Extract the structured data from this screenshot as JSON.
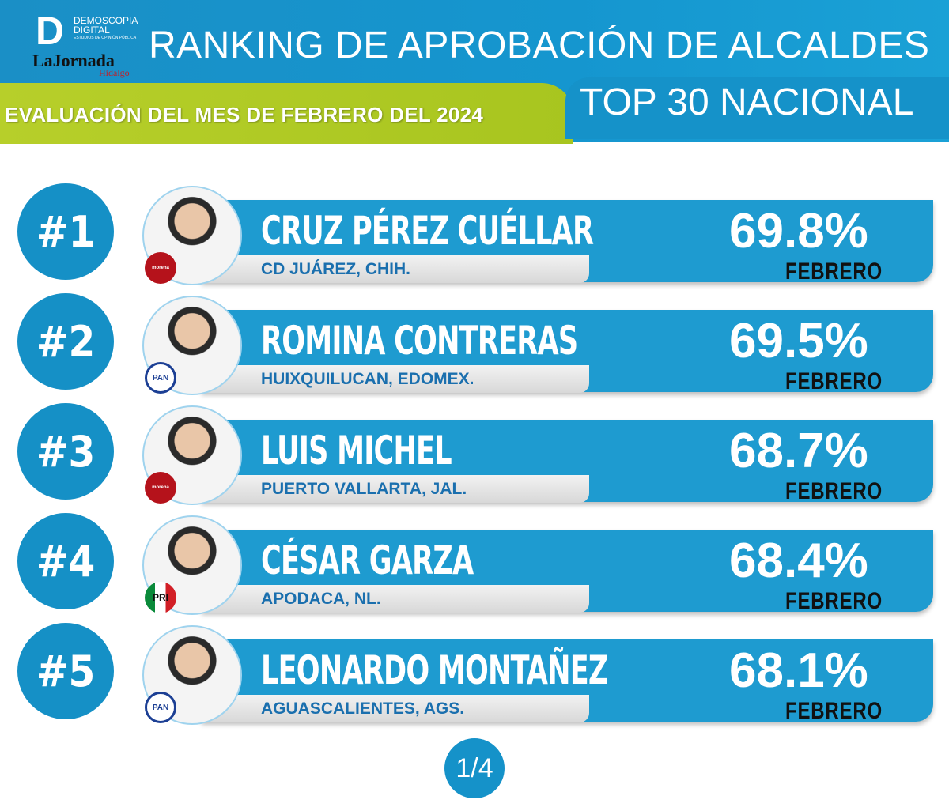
{
  "header": {
    "logo_text": "DEMOSCOPIA DIGITAL",
    "logo_tagline": "ESTUDIOS DE OPINIÓN PÚBLICA",
    "partner_logo": "LaJornada",
    "partner_sub": "Hidalgo",
    "title": "RANKING DE APROBACIÓN DE ALCALDES",
    "subtitle": "EVALUACIÓN DEL MES DE FEBRERO DEL 2024",
    "badge": "TOP 30 NACIONAL"
  },
  "colors": {
    "blue": "#1592c9",
    "green": "#b0c924",
    "bar": "#1e9bd0"
  },
  "ranking": [
    {
      "rank": "#1",
      "name": "CRUZ PÉREZ CUÉLLAR",
      "place": "CD JUÁREZ, CHIH.",
      "approval": "69.8%",
      "month": "FEBRERO",
      "party": "morena"
    },
    {
      "rank": "#2",
      "name": "ROMINA CONTRERAS",
      "place": "HUIXQUILUCAN, EDOMEX.",
      "approval": "69.5%",
      "month": "FEBRERO",
      "party": "PAN"
    },
    {
      "rank": "#3",
      "name": "LUIS MICHEL",
      "place": "PUERTO VALLARTA, JAL.",
      "approval": "68.7%",
      "month": "FEBRERO",
      "party": "morena"
    },
    {
      "rank": "#4",
      "name": "CÉSAR GARZA",
      "place": "APODACA, NL.",
      "approval": "68.4%",
      "month": "FEBRERO",
      "party": "PRI"
    },
    {
      "rank": "#5",
      "name": "LEONARDO MONTAÑEZ",
      "place": "AGUASCALIENTES, AGS.",
      "approval": "68.1%",
      "month": "FEBRERO",
      "party": "PAN"
    }
  ],
  "pager": "1/4"
}
